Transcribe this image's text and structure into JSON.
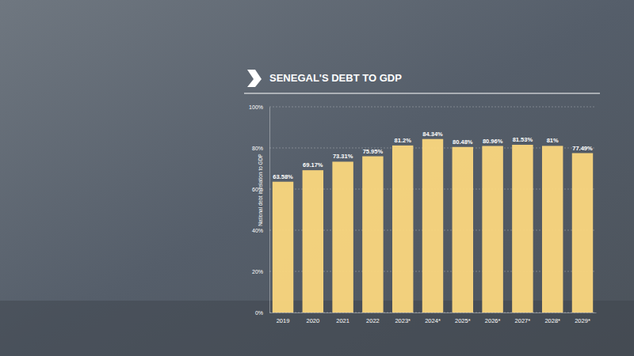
{
  "chart_data": {
    "type": "bar",
    "title": "SENEGAL'S DEBT TO GDP",
    "y_label": "National debt in relation to GDP",
    "categories": [
      "2019",
      "2020",
      "2021",
      "2022",
      "2023*",
      "2024*",
      "2025*",
      "2026*",
      "2027*",
      "2028*",
      "2029*"
    ],
    "values": [
      63.58,
      69.17,
      73.31,
      75.95,
      81.2,
      84.34,
      80.48,
      80.96,
      81.53,
      81,
      77.49
    ],
    "value_labels": [
      "63.58%",
      "69.17%",
      "73.31%",
      "75.95%",
      "81.2%",
      "84.34%",
      "80.48%",
      "80.96%",
      "81.53%",
      "81%",
      "77.49%"
    ],
    "color": "#fbd77e",
    "ylim": [
      0,
      100
    ],
    "yticks": [
      {
        "value": 0,
        "label": "0%"
      },
      {
        "value": 20,
        "label": "20%"
      },
      {
        "value": 40,
        "label": "40%"
      },
      {
        "value": 60,
        "label": "60%"
      },
      {
        "value": 80,
        "label": "80%"
      },
      {
        "value": 100,
        "label": "100%"
      }
    ],
    "grid": true,
    "data_labels": true
  }
}
